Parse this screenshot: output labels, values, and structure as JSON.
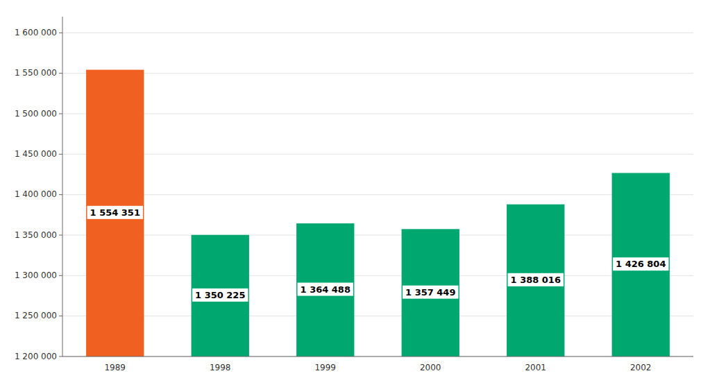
{
  "chart_data": {
    "type": "bar",
    "categories": [
      "1989",
      "1998",
      "1999",
      "2000",
      "2001",
      "2002"
    ],
    "values": [
      1554351,
      1350225,
      1364488,
      1357449,
      1388016,
      1426804
    ],
    "value_labels": [
      "1 554 351",
      "1 350 225",
      "1 364 488",
      "1 357 449",
      "1 388 016",
      "1 426 804"
    ],
    "colors": [
      "#F06020",
      "#00A870",
      "#00A870",
      "#00A870",
      "#00A870",
      "#00A870"
    ],
    "ylim": [
      1200000,
      1620000
    ],
    "yticks": [
      {
        "value": 1200000,
        "label": "1 200 000"
      },
      {
        "value": 1250000,
        "label": "1 250 000"
      },
      {
        "value": 1300000,
        "label": "1 300 000"
      },
      {
        "value": 1350000,
        "label": "1 350 000"
      },
      {
        "value": 1400000,
        "label": "1 400 000"
      },
      {
        "value": 1450000,
        "label": "1 450 000"
      },
      {
        "value": 1500000,
        "label": "1 500 000"
      },
      {
        "value": 1550000,
        "label": "1 550 000"
      },
      {
        "value": 1600000,
        "label": "1 600 000"
      }
    ],
    "grid": true,
    "data_labels": true
  }
}
